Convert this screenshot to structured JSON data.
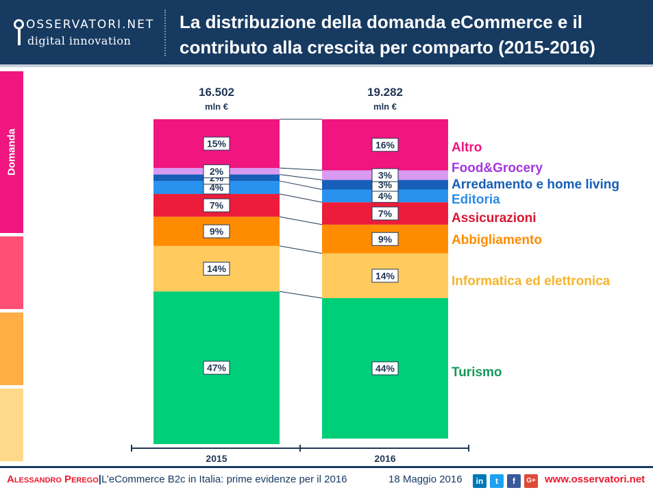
{
  "header": {
    "logo_top": "OSSERVATORI.NET",
    "logo_bottom": "digital innovation",
    "title": "La distribuzione della domanda eCommerce e il contributo alla crescita per comparto (2015-2016)"
  },
  "side_strip": {
    "label": "Domanda",
    "colors": [
      "#f0157f",
      "#ff4f74",
      "#ffad45",
      "#ffd98a"
    ]
  },
  "chart_data": {
    "type": "bar",
    "stacked": true,
    "normalized": true,
    "categories": [
      "2015",
      "2016"
    ],
    "totals": [
      "16.502",
      "19.282"
    ],
    "total_unit": "mln €",
    "series": [
      {
        "name": "Turismo",
        "color": "#00cf79",
        "label_color": "#14995a",
        "values": [
          47,
          44
        ]
      },
      {
        "name": "Informatica ed elettronica",
        "color": "#ffca5e",
        "label_color": "#f5b52b",
        "values": [
          14,
          14
        ]
      },
      {
        "name": "Abbigliamento",
        "color": "#ff8c00",
        "label_color": "#ff8c00",
        "values": [
          9,
          9
        ]
      },
      {
        "name": "Assicurazioni",
        "color": "#ed1c3a",
        "label_color": "#d91630",
        "values": [
          7,
          7
        ]
      },
      {
        "name": "Editoria",
        "color": "#2992ee",
        "label_color": "#2a8be6",
        "values": [
          4,
          4
        ]
      },
      {
        "name": "Arredamento e home living",
        "color": "#175fb8",
        "label_color": "#175fb8",
        "values": [
          2,
          3
        ]
      },
      {
        "name": "Food&Grocery",
        "color": "#d99af2",
        "label_color": "#a436dc",
        "values": [
          2,
          3
        ]
      },
      {
        "name": "Altro",
        "color": "#f0157f",
        "label_color": "#f0157f",
        "values": [
          15,
          16
        ]
      }
    ],
    "data_labels": [
      [
        "47%",
        "14%",
        "9%",
        "7%",
        "4%",
        "2%",
        "2%",
        "15%"
      ],
      [
        "44%",
        "14%",
        "9%",
        "7%",
        "4%",
        "3%",
        "3%",
        "16%"
      ]
    ]
  },
  "footer": {
    "author": "Alessandro Perego",
    "separator": "|",
    "text": "L’eCommerce B2c in Italia: prime evidenze per il 2016",
    "date": "18 Maggio 2016",
    "social": [
      "in",
      "t",
      "f",
      "G+"
    ],
    "url": "www.osservatori.net"
  }
}
